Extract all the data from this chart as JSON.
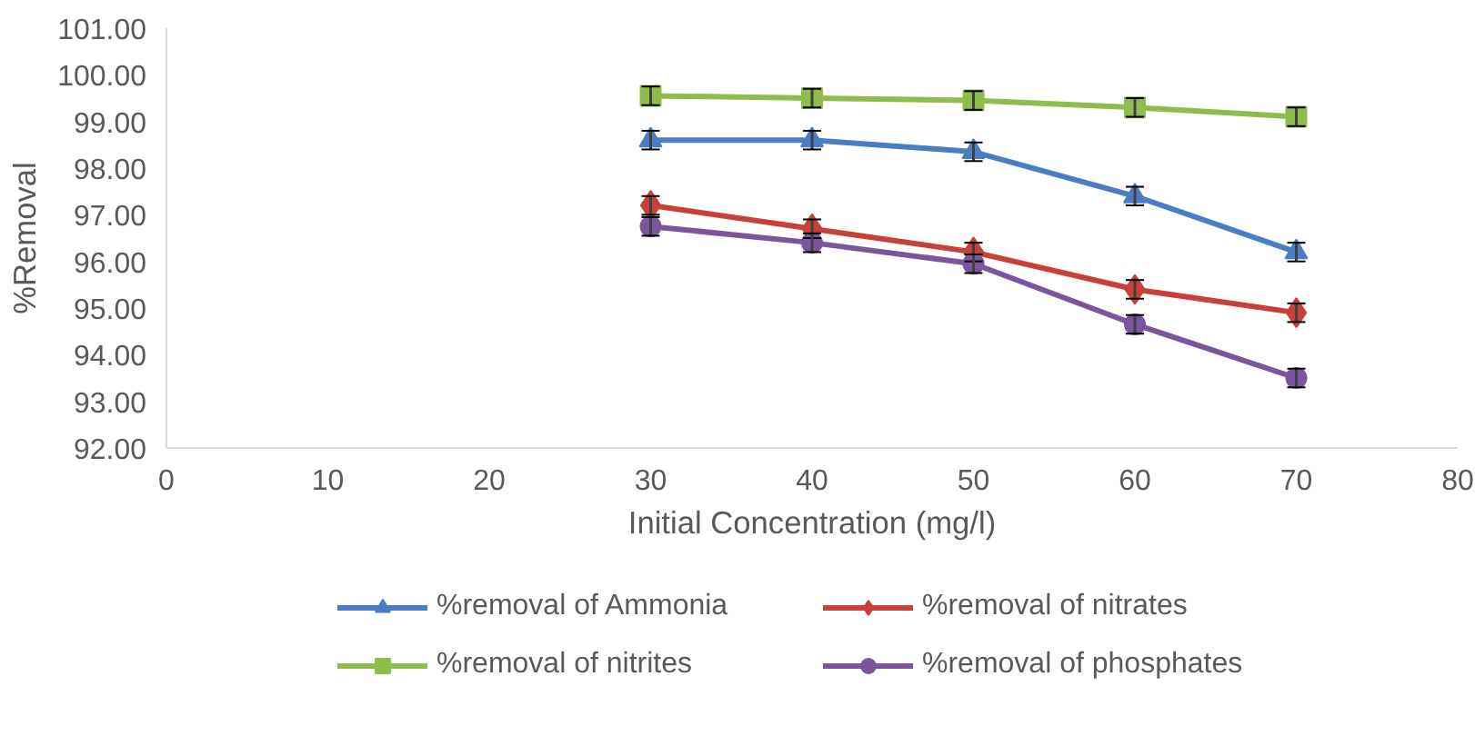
{
  "chart_data": {
    "type": "line",
    "xlabel": "Initial Concentration (mg/l)",
    "ylabel": "%Removal",
    "x": [
      30,
      40,
      50,
      60,
      70
    ],
    "xlim": [
      0,
      80
    ],
    "xticks": [
      0,
      10,
      20,
      30,
      40,
      50,
      60,
      70,
      80
    ],
    "ylim": [
      92,
      101
    ],
    "yticks": [
      {
        "value": 92,
        "label": "92.00"
      },
      {
        "value": 93,
        "label": "93.00"
      },
      {
        "value": 94,
        "label": "94.00"
      },
      {
        "value": 95,
        "label": "95.00"
      },
      {
        "value": 96,
        "label": "96.00"
      },
      {
        "value": 97,
        "label": "97.00"
      },
      {
        "value": 98,
        "label": "98.00"
      },
      {
        "value": 99,
        "label": "99.00"
      },
      {
        "value": 100,
        "label": "100.00"
      },
      {
        "value": 101,
        "label": "101.00"
      }
    ],
    "grid": false,
    "legend": "bottom",
    "series": [
      {
        "name": "%removal of Ammonia",
        "color": "#4a7ec4",
        "marker": "triangle",
        "values": [
          98.6,
          98.6,
          98.35,
          97.4,
          96.2
        ],
        "errors": [
          0.2,
          0.2,
          0.2,
          0.2,
          0.2
        ]
      },
      {
        "name": "%removal of nitrates",
        "color": "#c9403b",
        "marker": "diamond",
        "values": [
          97.2,
          96.7,
          96.2,
          95.4,
          94.9
        ],
        "errors": [
          0.2,
          0.2,
          0.2,
          0.2,
          0.2
        ]
      },
      {
        "name": "%removal of nitrites",
        "color": "#8fbc4a",
        "marker": "square",
        "values": [
          99.55,
          99.5,
          99.45,
          99.3,
          99.1
        ],
        "errors": [
          0.2,
          0.2,
          0.2,
          0.2,
          0.2
        ]
      },
      {
        "name": "%removal of phosphates",
        "color": "#7b559e",
        "marker": "circle",
        "values": [
          96.75,
          96.4,
          95.95,
          94.65,
          93.5
        ],
        "errors": [
          0.2,
          0.2,
          0.2,
          0.2,
          0.2
        ]
      }
    ]
  }
}
